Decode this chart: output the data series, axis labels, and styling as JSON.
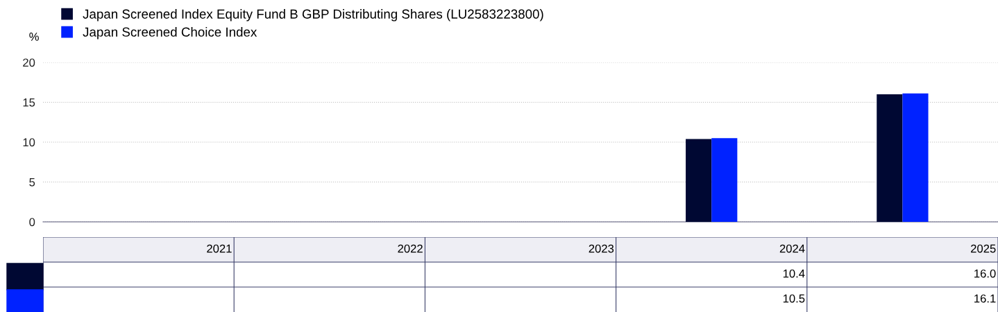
{
  "chart_data": {
    "type": "bar",
    "ylabel": "%",
    "categories": [
      "2021",
      "2022",
      "2023",
      "2024",
      "2025"
    ],
    "series": [
      {
        "name": "Japan Screened Index Equity Fund B GBP Distributing Shares (LU2583223800)",
        "color": "#000833",
        "values": [
          null,
          null,
          null,
          10.4,
          16.0
        ],
        "value_labels": [
          null,
          null,
          null,
          "10.4",
          "16.0"
        ]
      },
      {
        "name": "Japan Screened Choice Index",
        "color": "#0022ff",
        "values": [
          null,
          null,
          null,
          10.5,
          16.1
        ],
        "value_labels": [
          null,
          null,
          null,
          "10.5",
          "16.1"
        ]
      }
    ],
    "ylim": [
      0,
      20
    ],
    "yticks": [
      0,
      5,
      10,
      15,
      20
    ],
    "grid": "y",
    "legend": "top left"
  }
}
